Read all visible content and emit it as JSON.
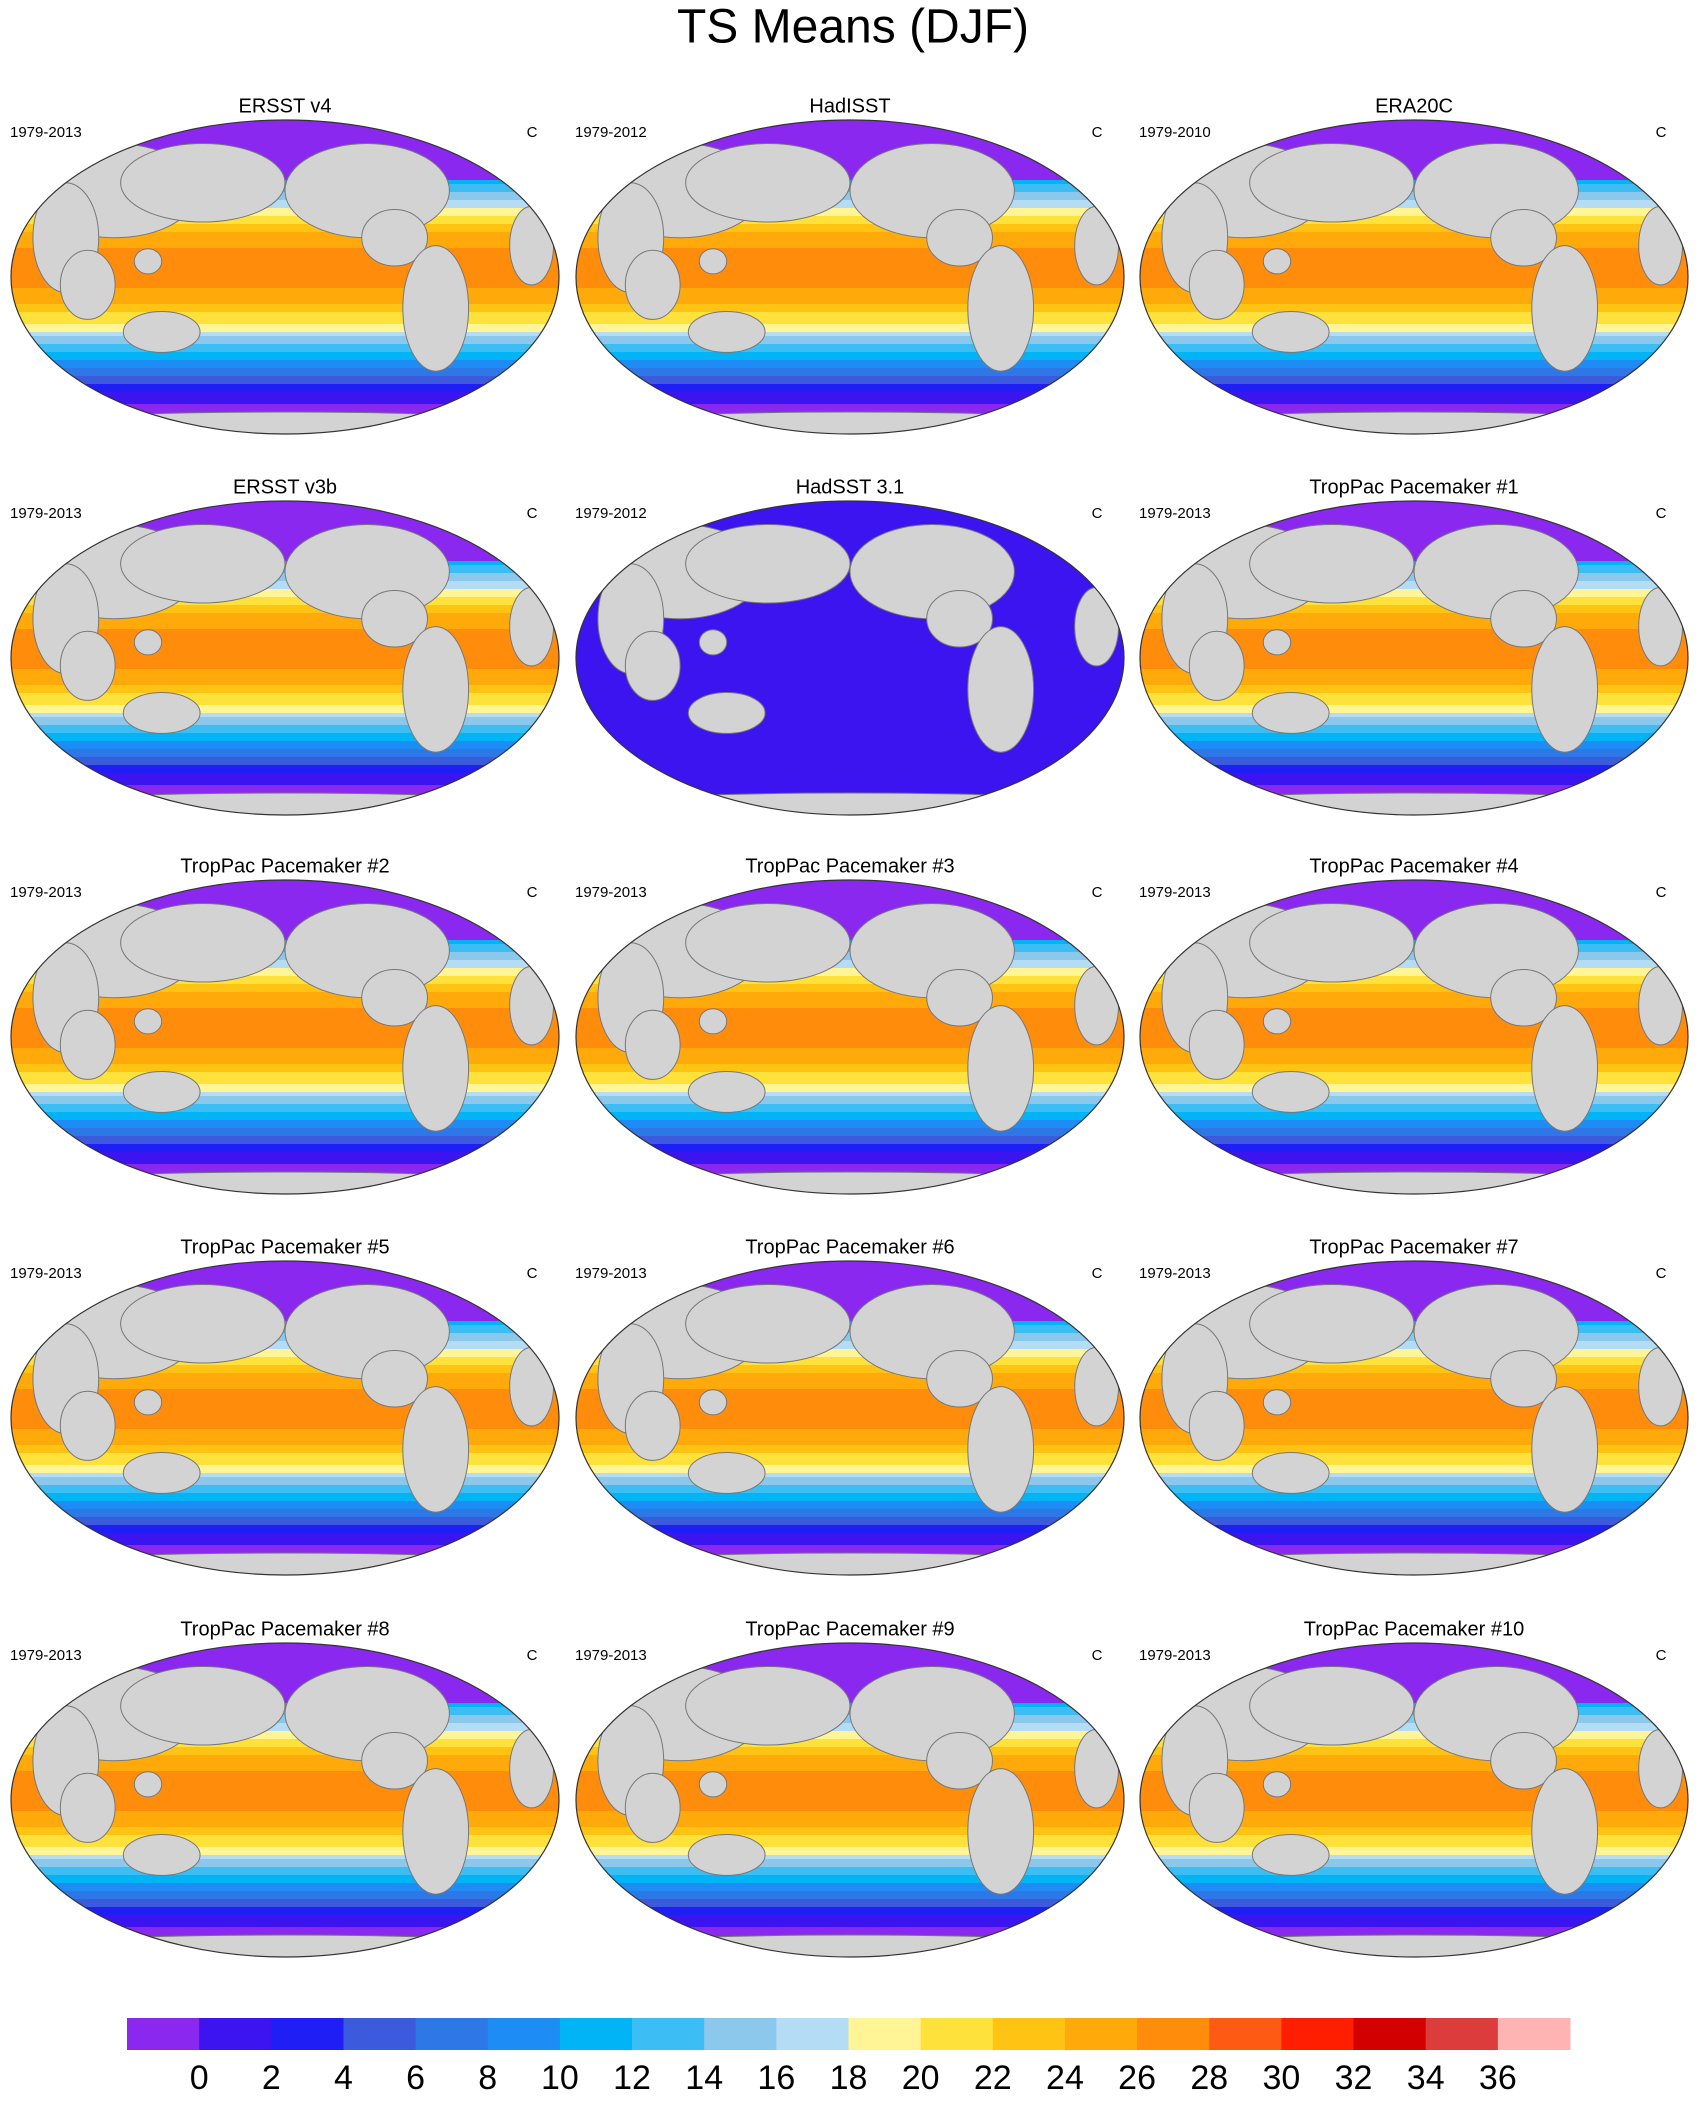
{
  "title": "TS Means (DJF)",
  "panels": [
    {
      "title": "ERSST v4",
      "period": "1979-2013",
      "units": "C"
    },
    {
      "title": "HadISST",
      "period": "1979-2012",
      "units": "C"
    },
    {
      "title": "ERA20C",
      "period": "1979-2010",
      "units": "C"
    },
    {
      "title": "ERSST v3b",
      "period": "1979-2013",
      "units": "C"
    },
    {
      "title": "HadSST 3.1",
      "period": "1979-2012",
      "units": "C"
    },
    {
      "title": "TropPac Pacemaker #1",
      "period": "1979-2013",
      "units": "C"
    },
    {
      "title": "TropPac Pacemaker #2",
      "period": "1979-2013",
      "units": "C"
    },
    {
      "title": "TropPac Pacemaker #3",
      "period": "1979-2013",
      "units": "C"
    },
    {
      "title": "TropPac Pacemaker #4",
      "period": "1979-2013",
      "units": "C"
    },
    {
      "title": "TropPac Pacemaker #5",
      "period": "1979-2013",
      "units": "C"
    },
    {
      "title": "TropPac Pacemaker #6",
      "period": "1979-2013",
      "units": "C"
    },
    {
      "title": "TropPac Pacemaker #7",
      "period": "1979-2013",
      "units": "C"
    },
    {
      "title": "TropPac Pacemaker #8",
      "period": "1979-2013",
      "units": "C"
    },
    {
      "title": "TropPac Pacemaker #9",
      "period": "1979-2013",
      "units": "C"
    },
    {
      "title": "TropPac Pacemaker #10",
      "period": "1979-2013",
      "units": "C"
    }
  ],
  "colorbar": {
    "colors": [
      "#8a28f0",
      "#3c14f0",
      "#1e1ef5",
      "#3c5adc",
      "#2d78e6",
      "#1e8cf5",
      "#00b4f5",
      "#3cbef5",
      "#8cc8eb",
      "#b4dcf5",
      "#fff596",
      "#ffe13c",
      "#ffc314",
      "#ffaa0a",
      "#ff8c0a",
      "#ff5a14",
      "#ff1e00",
      "#d20000",
      "#dc3c3c",
      "#ffb4b4"
    ],
    "ticks": [
      0,
      2,
      4,
      6,
      8,
      10,
      12,
      14,
      16,
      18,
      20,
      22,
      24,
      26,
      28,
      30,
      32,
      34,
      36
    ]
  }
}
